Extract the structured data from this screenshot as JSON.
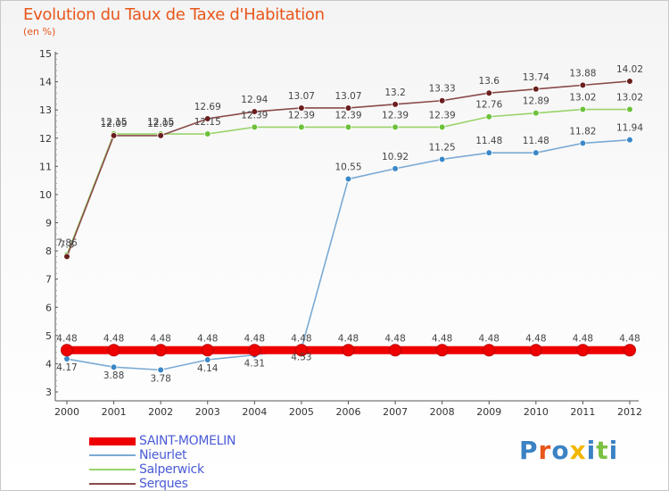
{
  "header": {
    "title": "Evolution du Taux de Taxe d'Habitation",
    "subtitle": "(en %)"
  },
  "logo": {
    "parts": [
      "P",
      "r",
      "o",
      "x",
      "i",
      "t",
      "i"
    ],
    "colors": [
      "#3b82c4",
      "#e8561a",
      "#3b82c4",
      "#f2b700",
      "#3b82c4",
      "#7cc242",
      "#3b82c4"
    ]
  },
  "chart_data": {
    "type": "line",
    "x": [
      2000,
      2001,
      2002,
      2003,
      2004,
      2005,
      2006,
      2007,
      2008,
      2009,
      2010,
      2011,
      2012
    ],
    "ylim": [
      3,
      15
    ],
    "yticks": [
      3,
      4,
      5,
      6,
      7,
      8,
      9,
      10,
      11,
      12,
      13,
      14,
      15
    ],
    "grid": false,
    "legend_position": "bottom-left",
    "series": [
      {
        "name": "SAINT-MOMELIN",
        "color": "#ee0000",
        "values": [
          4.48,
          4.48,
          4.48,
          4.48,
          4.48,
          4.48,
          4.48,
          4.48,
          4.48,
          4.48,
          4.48,
          4.48,
          4.48
        ],
        "labels": [
          "4.48",
          "4.48",
          "4.48",
          "4.48",
          "4.48",
          "4.48",
          "4.48",
          "4.48",
          "4.48",
          "4.48",
          "4.48",
          "4.48",
          "4.48"
        ]
      },
      {
        "name": "Nieurlet",
        "color": "#7aaad4",
        "marker": "#3a88c8",
        "values": [
          4.17,
          3.88,
          3.78,
          4.14,
          4.31,
          4.53,
          10.55,
          10.92,
          11.25,
          11.48,
          11.48,
          11.82,
          11.94
        ],
        "labels": [
          "4.17",
          "3.88",
          "3.78",
          "4.14",
          "4.31",
          "4.53",
          "10.55",
          "10.92",
          "11.25",
          "11.48",
          "11.48",
          "11.82",
          "11.94"
        ]
      },
      {
        "name": "Salperwick",
        "color": "#99d46a",
        "marker": "#6cc13a",
        "values": [
          7.86,
          12.15,
          12.15,
          12.15,
          12.39,
          12.39,
          12.39,
          12.39,
          12.39,
          12.76,
          12.89,
          13.02,
          13.02
        ],
        "labels": [
          "7.86",
          "12.15",
          "12.15",
          "12.15",
          "12.39",
          "12.39",
          "12.39",
          "12.39",
          "12.39",
          "12.76",
          "12.89",
          "13.02",
          "13.02"
        ]
      },
      {
        "name": "Serques",
        "color": "#8a4a4a",
        "marker": "#6a1e1e",
        "values": [
          7.8,
          12.09,
          12.09,
          12.69,
          12.94,
          13.07,
          13.07,
          13.2,
          13.33,
          13.6,
          13.74,
          13.88,
          14.02
        ],
        "labels": [
          "7.8",
          "12.09",
          "12.09",
          "12.69",
          "12.94",
          "13.07",
          "13.07",
          "13.2",
          "13.33",
          "13.6",
          "13.74",
          "13.88",
          "14.02"
        ]
      }
    ]
  }
}
